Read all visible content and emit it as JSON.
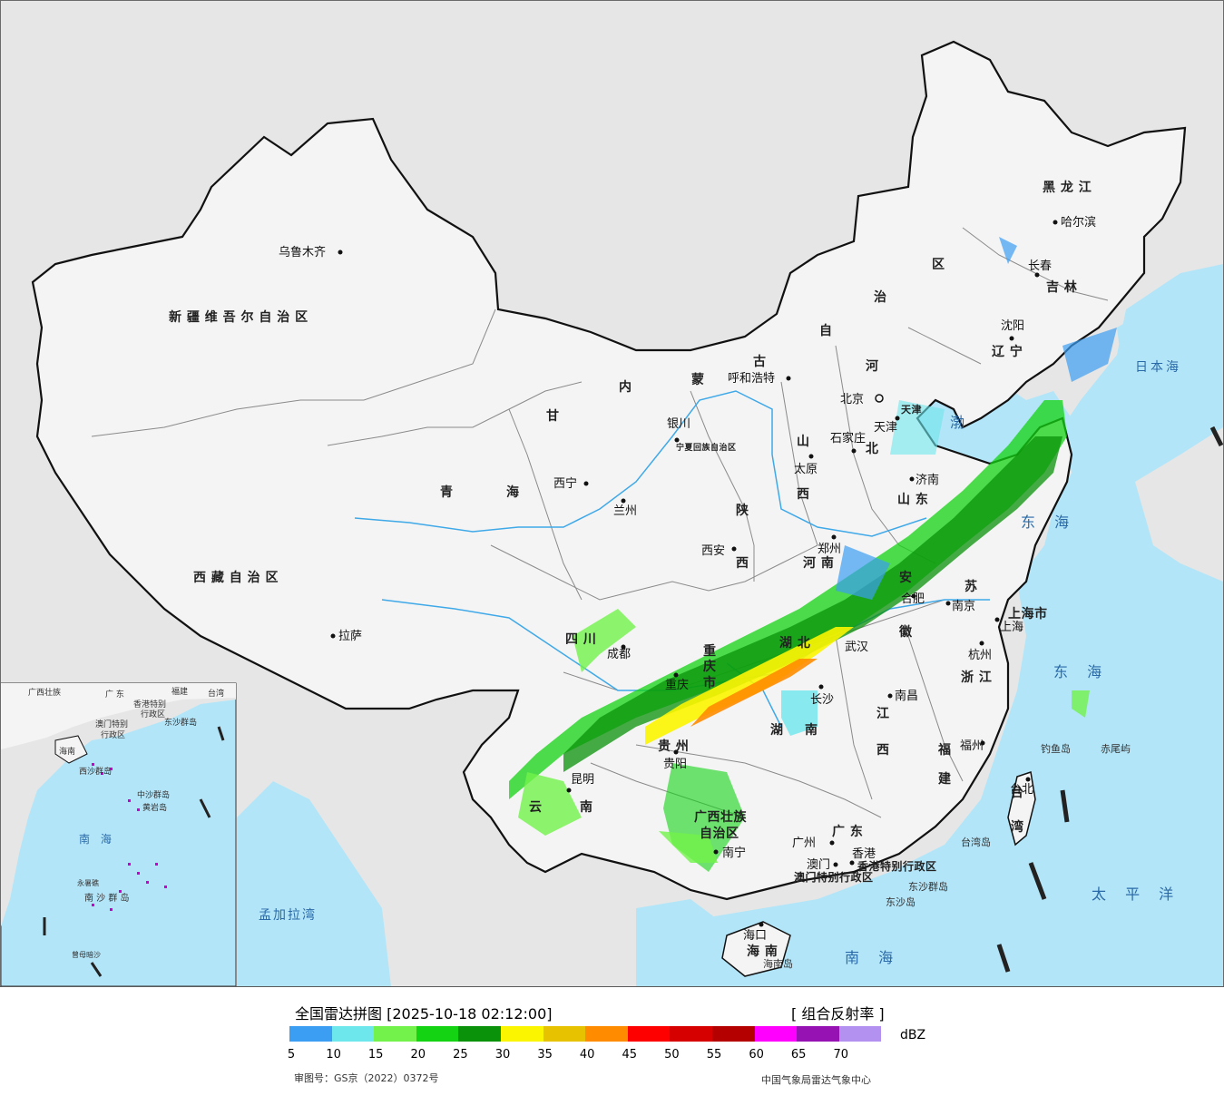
{
  "map": {
    "province_labels": [
      {
        "id": "xinjiang",
        "text": "新 疆 维 吾 尔 自 治 区"
      },
      {
        "id": "xizang",
        "text": "西 藏 自 治 区"
      },
      {
        "id": "qinghai-1",
        "text": "青"
      },
      {
        "id": "qinghai-2",
        "text": "海"
      },
      {
        "id": "gansu",
        "text": "甘"
      },
      {
        "id": "nmg-1",
        "text": "内"
      },
      {
        "id": "nmg-2",
        "text": "蒙"
      },
      {
        "id": "nmg-3",
        "text": "古"
      },
      {
        "id": "nmg-4",
        "text": "自"
      },
      {
        "id": "nmg-5",
        "text": "治"
      },
      {
        "id": "nmg-6",
        "text": "区"
      },
      {
        "id": "heilongjiang",
        "text": "黑 龙 江"
      },
      {
        "id": "jilin",
        "text": "吉 林"
      },
      {
        "id": "liaoning",
        "text": "辽 宁"
      },
      {
        "id": "hebei-1",
        "text": "河"
      },
      {
        "id": "hebei-2",
        "text": "北"
      },
      {
        "id": "shanxi-1",
        "text": "山"
      },
      {
        "id": "shanxi-2",
        "text": "西"
      },
      {
        "id": "shandong",
        "text": "山 东"
      },
      {
        "id": "shaanxi-1",
        "text": "陕"
      },
      {
        "id": "shaanxi-2",
        "text": "西"
      },
      {
        "id": "henan",
        "text": "河 南"
      },
      {
        "id": "jiangsu",
        "text": "苏"
      },
      {
        "id": "anhui-1",
        "text": "安"
      },
      {
        "id": "anhui-2",
        "text": "徽"
      },
      {
        "id": "sichuan",
        "text": "四 川"
      },
      {
        "id": "chongqing-1",
        "text": "重"
      },
      {
        "id": "chongqing-2",
        "text": "庆"
      },
      {
        "id": "chongqing-3",
        "text": "市"
      },
      {
        "id": "hubei",
        "text": "湖 北"
      },
      {
        "id": "hunan-1",
        "text": "湖"
      },
      {
        "id": "hunan-2",
        "text": "南"
      },
      {
        "id": "jiangxi-1",
        "text": "江"
      },
      {
        "id": "jiangxi-2",
        "text": "西"
      },
      {
        "id": "zhejiang",
        "text": "浙 江"
      },
      {
        "id": "fujian-1",
        "text": "福"
      },
      {
        "id": "fujian-2",
        "text": "建"
      },
      {
        "id": "guizhou",
        "text": "贵 州"
      },
      {
        "id": "yunnan-1",
        "text": "云"
      },
      {
        "id": "yunnan-2",
        "text": "南"
      },
      {
        "id": "guangxi-1",
        "text": "广西壮族"
      },
      {
        "id": "guangxi-2",
        "text": "自治区"
      },
      {
        "id": "guangdong",
        "text": "广 东"
      },
      {
        "id": "hainan",
        "text": "海 南"
      },
      {
        "id": "taiwan-1",
        "text": "台"
      },
      {
        "id": "taiwan-2",
        "text": "湾"
      },
      {
        "id": "ningxia",
        "text": "宁夏回族自治区"
      },
      {
        "id": "tianjin",
        "text": "天津"
      },
      {
        "id": "shanghai-city",
        "text": "上海市"
      },
      {
        "id": "hk-sar",
        "text": "香港特别行政区"
      },
      {
        "id": "macau-sar",
        "text": "澳门特别行政区"
      }
    ],
    "cities": [
      {
        "id": "urumqi",
        "text": "乌鲁木齐"
      },
      {
        "id": "lhasa",
        "text": "拉萨"
      },
      {
        "id": "xining",
        "text": "西宁"
      },
      {
        "id": "lanzhou",
        "text": "兰州"
      },
      {
        "id": "yinchuan",
        "text": "银川"
      },
      {
        "id": "hohhot",
        "text": "呼和浩特"
      },
      {
        "id": "beijing",
        "text": "北京"
      },
      {
        "id": "tianjin-city",
        "text": "天津"
      },
      {
        "id": "shijiazhuang",
        "text": "石家庄"
      },
      {
        "id": "taiyuan",
        "text": "太原"
      },
      {
        "id": "jinan",
        "text": "济南"
      },
      {
        "id": "xian",
        "text": "西安"
      },
      {
        "id": "zhengzhou",
        "text": "郑州"
      },
      {
        "id": "hefei",
        "text": "合肥"
      },
      {
        "id": "nanjing",
        "text": "南京"
      },
      {
        "id": "shanghai",
        "text": "上海"
      },
      {
        "id": "hangzhou",
        "text": "杭州"
      },
      {
        "id": "chengdu",
        "text": "成都"
      },
      {
        "id": "chongqing",
        "text": "重庆"
      },
      {
        "id": "wuhan",
        "text": "武汉"
      },
      {
        "id": "changsha",
        "text": "长沙"
      },
      {
        "id": "nanchang",
        "text": "南昌"
      },
      {
        "id": "fuzhou",
        "text": "福州"
      },
      {
        "id": "guiyang",
        "text": "贵阳"
      },
      {
        "id": "kunming",
        "text": "昆明"
      },
      {
        "id": "nanning",
        "text": "南宁"
      },
      {
        "id": "guangzhou",
        "text": "广州"
      },
      {
        "id": "hongkong",
        "text": "香港"
      },
      {
        "id": "macau",
        "text": "澳门"
      },
      {
        "id": "haikou",
        "text": "海口"
      },
      {
        "id": "taipei",
        "text": "台北"
      },
      {
        "id": "harbin",
        "text": "哈尔滨"
      },
      {
        "id": "changchun",
        "text": "长春"
      },
      {
        "id": "shenyang",
        "text": "沈阳"
      }
    ],
    "sea_labels": [
      {
        "id": "bohai",
        "text": "渤"
      },
      {
        "id": "huanghai",
        "text": "海"
      },
      {
        "id": "donghai",
        "text": "东 海"
      },
      {
        "id": "nanhai",
        "text": "南 海"
      },
      {
        "id": "taipingyang",
        "text": "太 平 洋"
      },
      {
        "id": "ribenhai",
        "text": "日本海"
      },
      {
        "id": "mengjialawan",
        "text": "孟加拉湾"
      }
    ],
    "island_labels": [
      {
        "id": "diaoyudao",
        "text": "钓鱼岛"
      },
      {
        "id": "chiweiyu",
        "text": "赤尾屿"
      },
      {
        "id": "taiwandao",
        "text": "台湾岛"
      },
      {
        "id": "dongshaqundao",
        "text": "东沙群岛"
      },
      {
        "id": "dongshadao",
        "text": "东沙岛"
      },
      {
        "id": "hainandao",
        "text": "海南岛"
      }
    ],
    "inset_labels": [
      {
        "id": "inset-guangxi",
        "text": "广西壮族"
      },
      {
        "id": "inset-guangdong",
        "text": "广 东"
      },
      {
        "id": "inset-fujian",
        "text": "福建"
      },
      {
        "id": "inset-taiwan",
        "text": "台湾"
      },
      {
        "id": "inset-hk",
        "text": "香港特别"
      },
      {
        "id": "inset-hk2",
        "text": "行政区"
      },
      {
        "id": "inset-macau",
        "text": "澳门特别"
      },
      {
        "id": "inset-macau2",
        "text": "行政区"
      },
      {
        "id": "inset-dongsha",
        "text": "东沙群岛"
      },
      {
        "id": "inset-hainan",
        "text": "海南"
      },
      {
        "id": "inset-xisha",
        "text": "西沙群岛"
      },
      {
        "id": "inset-zhongsha",
        "text": "中沙群岛"
      },
      {
        "id": "inset-huangyan",
        "text": "黄岩岛"
      },
      {
        "id": "inset-nanhai",
        "text": "南 海"
      },
      {
        "id": "inset-nansha",
        "text": "南 沙 群 岛"
      },
      {
        "id": "inset-yongshu",
        "text": "永暑礁"
      },
      {
        "id": "inset-zengmu",
        "text": "曾母暗沙"
      }
    ],
    "colors": {
      "ocean": "#b3e5f8",
      "land": "#f4f4f4",
      "foreign": "#e6e6e6",
      "border": "#111111",
      "province": "#8a8a8a",
      "river": "#3fa9e8"
    }
  },
  "legend": {
    "title": "全国雷达拼图 [2025-10-18 02:12:00]",
    "product": "[ 组合反射率 ]",
    "unit": "dBZ",
    "ticks": [
      "5",
      "10",
      "15",
      "20",
      "25",
      "30",
      "35",
      "40",
      "45",
      "50",
      "55",
      "60",
      "65",
      "70"
    ],
    "colors": [
      "#3c9ef2",
      "#6de6ec",
      "#72f24a",
      "#13d313",
      "#0a920a",
      "#fcf500",
      "#e6c200",
      "#ff8c00",
      "#ff0000",
      "#d60000",
      "#b50000",
      "#ff00ff",
      "#9612b2",
      "#b391f0"
    ],
    "approval": "审图号：GS京（2022）0372号",
    "credit": "中国气象局雷达气象中心"
  }
}
